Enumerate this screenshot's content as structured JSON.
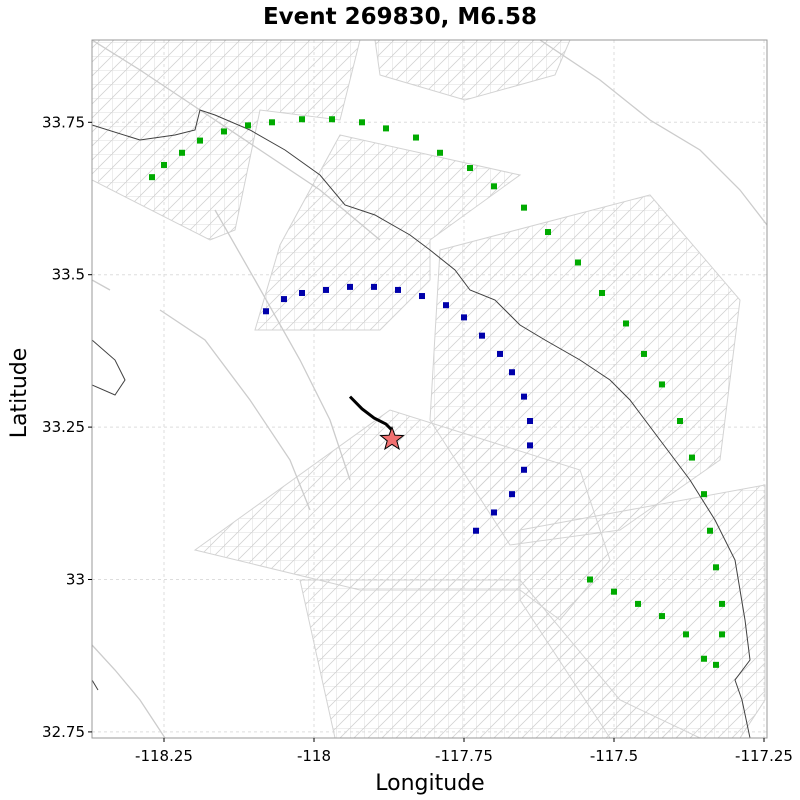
{
  "chart_data": {
    "type": "scatter",
    "title": "Event 269830, M6.58",
    "xlabel": "Longitude",
    "ylabel": "Latitude",
    "xlim": [
      -118.37,
      -117.245
    ],
    "ylim": [
      32.74,
      33.885
    ],
    "x_ticks": [
      -118.25,
      -118,
      -117.75,
      -117.5,
      -117.25
    ],
    "x_tick_labels": [
      "-118.25",
      "-118",
      "-117.75",
      "-117.5",
      "-117.25"
    ],
    "y_ticks": [
      32.75,
      33,
      33.25,
      33.5,
      33.75
    ],
    "y_tick_labels": [
      "32.75",
      "33",
      "33.25",
      "33.5",
      "33.75"
    ],
    "grid": true,
    "colors": {
      "mesh": "#d3d3d3",
      "coastline": "#404040",
      "faults": "#cccccc",
      "green_arc": "#00aa00",
      "blue_arc": "#0000aa",
      "rupture": "#000000",
      "epicenter": "#f07070"
    },
    "series": [
      {
        "marker": "square",
        "color": "#00aa00",
        "x": [
          -118.27,
          -118.25,
          -118.22,
          -118.19,
          -118.15,
          -118.11,
          -118.07,
          -118.02,
          -117.97,
          -117.92,
          -117.88,
          -117.83,
          -117.79,
          -117.74,
          -117.7,
          -117.65,
          -117.61,
          -117.56,
          -117.52,
          -117.48,
          -117.45,
          -117.42,
          -117.39,
          -117.37,
          -117.35,
          -117.34,
          -117.33,
          -117.32,
          -117.32,
          -117.33,
          -117.35,
          -117.38,
          -117.42,
          -117.46,
          -117.5,
          -117.54
        ],
        "y": [
          33.66,
          33.68,
          33.7,
          33.72,
          33.735,
          33.745,
          33.75,
          33.755,
          33.755,
          33.75,
          33.74,
          33.725,
          33.7,
          33.675,
          33.645,
          33.61,
          33.57,
          33.52,
          33.47,
          33.42,
          33.37,
          33.32,
          33.26,
          33.2,
          33.14,
          33.08,
          33.02,
          32.96,
          32.91,
          32.86,
          32.87,
          32.91,
          32.94,
          32.96,
          32.98,
          33.0
        ]
      },
      {
        "marker": "square",
        "color": "#0000aa",
        "x": [
          -118.08,
          -118.05,
          -118.02,
          -117.98,
          -117.94,
          -117.9,
          -117.86,
          -117.82,
          -117.78,
          -117.75,
          -117.72,
          -117.69,
          -117.67,
          -117.65,
          -117.64,
          -117.64,
          -117.65,
          -117.67,
          -117.7,
          -117.73
        ],
        "y": [
          33.44,
          33.46,
          33.47,
          33.475,
          33.48,
          33.48,
          33.475,
          33.465,
          33.45,
          33.43,
          33.4,
          33.37,
          33.34,
          33.3,
          33.26,
          33.22,
          33.18,
          33.14,
          33.11,
          33.08
        ]
      }
    ],
    "rupture_trace": {
      "x": [
        -117.94,
        -117.92,
        -117.9,
        -117.88,
        -117.87
      ],
      "y": [
        33.3,
        33.28,
        33.265,
        33.255,
        33.245
      ]
    },
    "epicenter": {
      "x": -117.87,
      "y": 33.23,
      "marker": "star"
    }
  }
}
